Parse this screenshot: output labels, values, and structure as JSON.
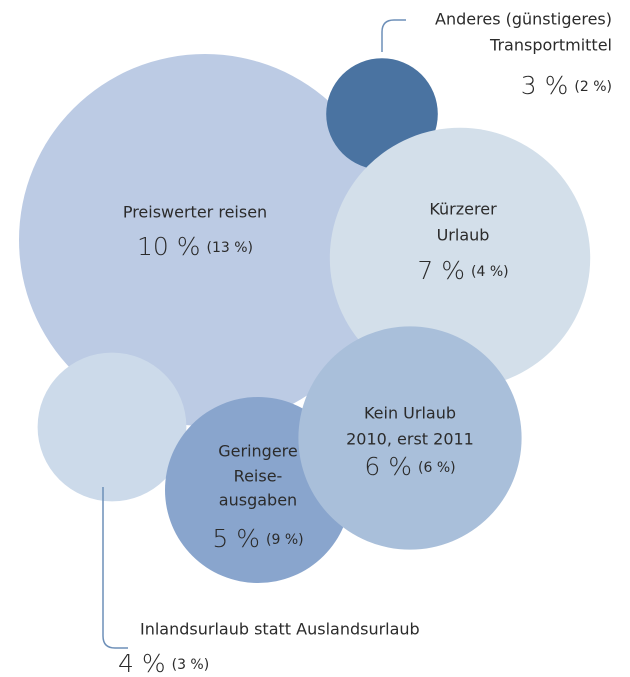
{
  "chart_data": {
    "type": "bubble",
    "categories": [
      [
        "Preiswerter reisen"
      ],
      [
        "Kürzerer",
        "Urlaub"
      ],
      [
        "Kein Urlaub",
        "2010, erst 2011"
      ],
      [
        "Geringere",
        "Reise-",
        "ausgaben"
      ],
      [
        "Inlandsurlaub statt Auslandsurlaub"
      ],
      [
        "Anderes (günstigeres)",
        "Transportmittel"
      ]
    ],
    "values": [
      10,
      7,
      6,
      5,
      4,
      3
    ],
    "value_labels": [
      "10 %",
      "7 %",
      "6 %",
      "5 %",
      "4 %",
      "3 %"
    ],
    "previous_values": [
      13,
      4,
      6,
      9,
      3,
      2
    ],
    "previous_labels": [
      "(13 %)",
      "(4 %)",
      "(6 %)",
      "(9 %)",
      "(3 %)",
      "(2 %)"
    ],
    "colors": [
      "#bccbe4",
      "#d3dfea",
      "#a9bfda",
      "#89a5cd",
      "#ccdaea",
      "#4a73a1"
    ]
  }
}
